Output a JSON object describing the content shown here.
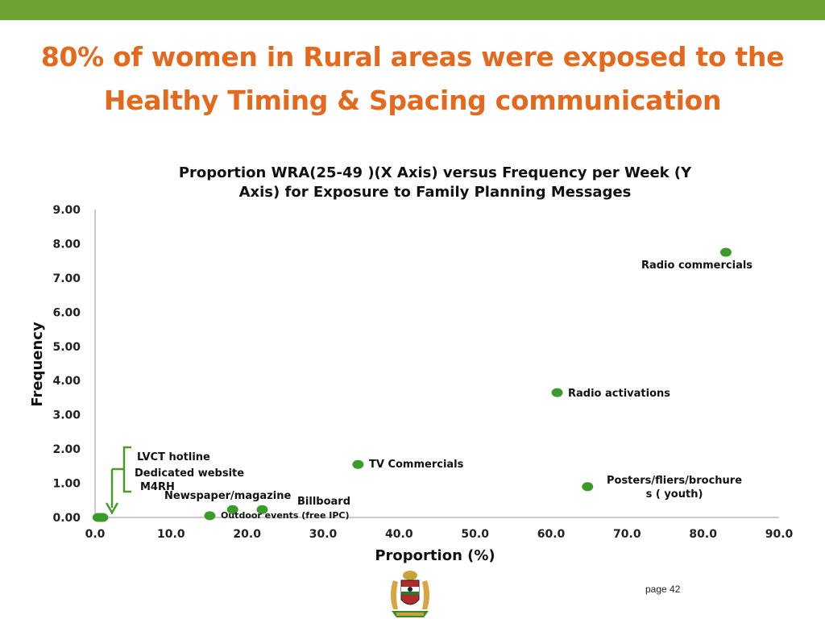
{
  "slide": {
    "title_lines": [
      "80% of women in Rural areas were exposed to the",
      "Healthy Timing & Spacing communication"
    ],
    "page_label": "page 42"
  },
  "colors": {
    "bar": "#6ea233",
    "title": "#e4691d",
    "marker": "#3c9a2a",
    "annotation": "#4c9a2a"
  },
  "chart_data": {
    "type": "scatter",
    "title": "Proportion WRA(25-49 )(X Axis) versus Frequency per Week (Y Axis)  for Exposure to Family Planning Messages",
    "title_lines": [
      "Proportion WRA(25-49 )(X Axis) versus Frequency per Week (Y",
      "Axis)  for Exposure to Family Planning Messages"
    ],
    "xlabel": "Proportion (%)",
    "ylabel": "Frequency",
    "xlim": [
      0,
      90
    ],
    "ylim": [
      0,
      9
    ],
    "x_ticks": [
      "0.0",
      "10.0",
      "20.0",
      "30.0",
      "40.0",
      "50.0",
      "60.0",
      "70.0",
      "80.0",
      "90.0"
    ],
    "y_ticks": [
      "0.00",
      "1.00",
      "2.00",
      "3.00",
      "4.00",
      "5.00",
      "6.00",
      "7.00",
      "8.00",
      "9.00"
    ],
    "grid": false,
    "points": [
      {
        "label": "Radio commercials",
        "x": 83.0,
        "y": 7.75
      },
      {
        "label": "Radio activations",
        "x": 60.8,
        "y": 3.65
      },
      {
        "label": "TV Commercials",
        "x": 34.6,
        "y": 1.55
      },
      {
        "label": "Posters/fliers/brochure\ns ( youth)",
        "x": 64.8,
        "y": 0.9
      },
      {
        "label": "Billboard",
        "x": 22.0,
        "y": 0.23
      },
      {
        "label": "Newspaper/magazine",
        "x": 18.1,
        "y": 0.23
      },
      {
        "label": "Outdoor events (free IPC)",
        "x": 15.1,
        "y": 0.05
      },
      {
        "label": "LVCT hotline",
        "x": 0.4,
        "y": 0.0
      },
      {
        "label": "Dedicated website",
        "x": 0.7,
        "y": 0.0
      },
      {
        "label": "M4RH",
        "x": 1.0,
        "y": 0.0
      }
    ]
  }
}
